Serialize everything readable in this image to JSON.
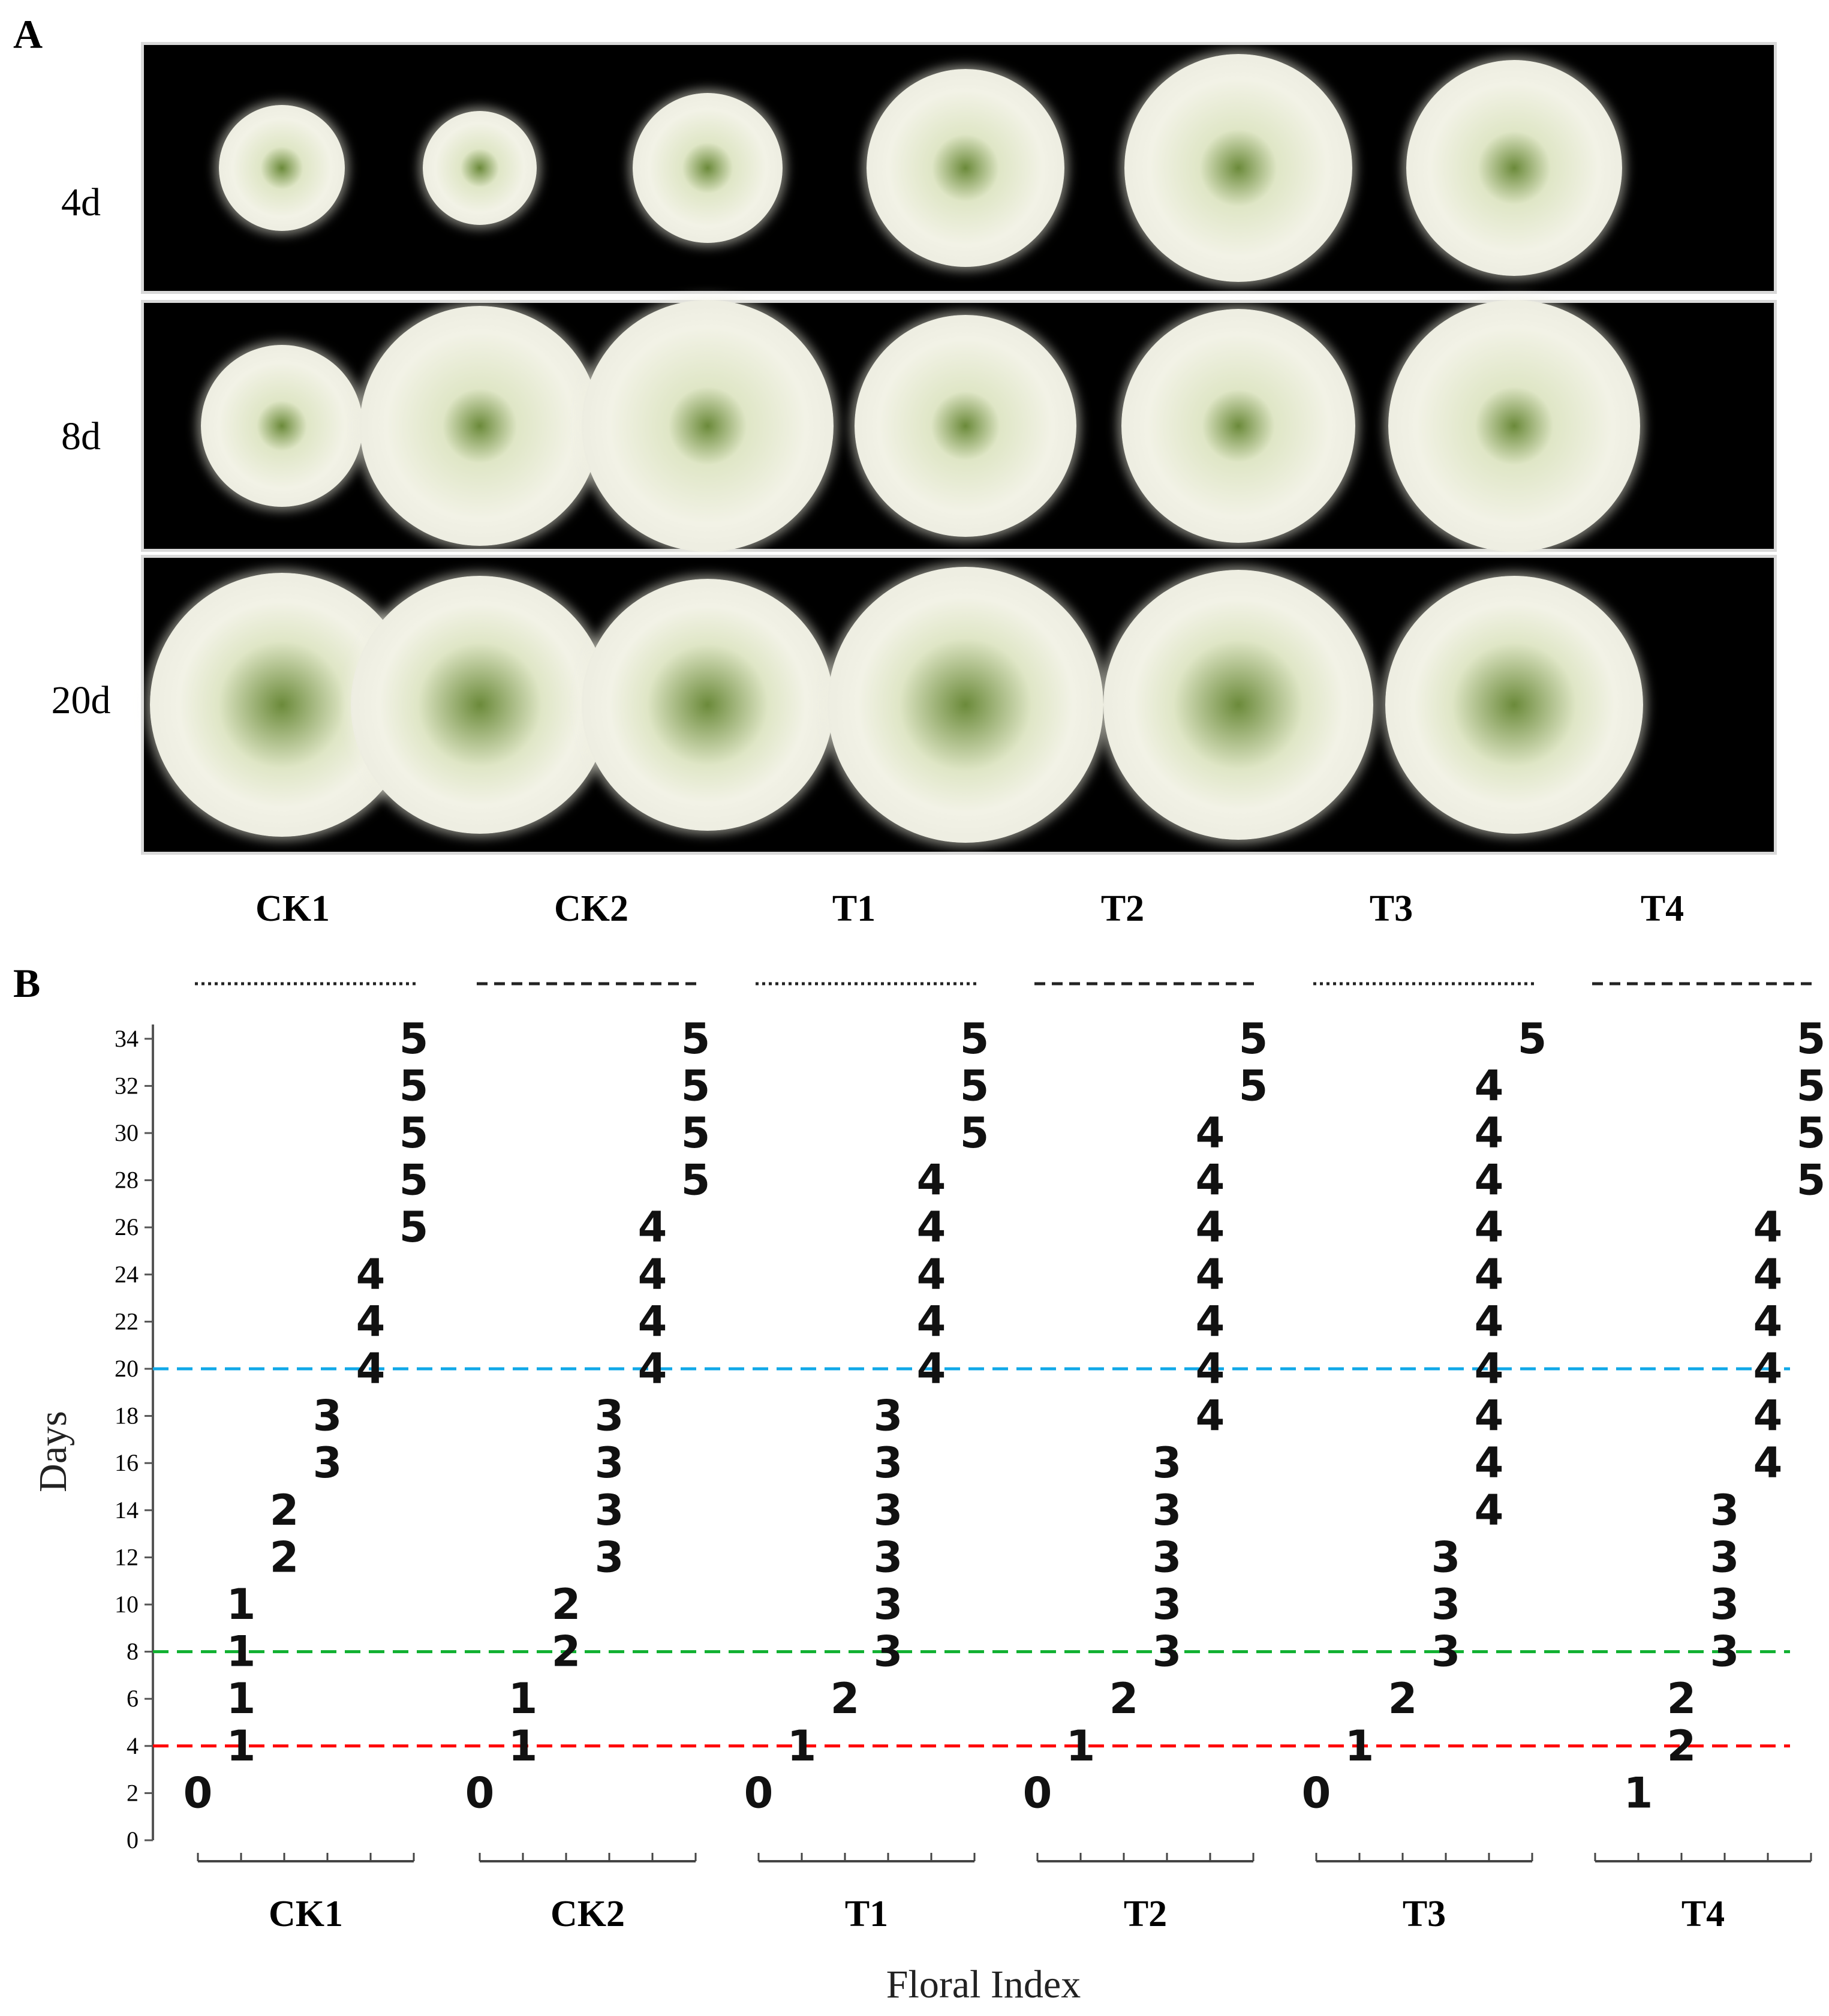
{
  "panel_a": {
    "letter": "A",
    "rows": [
      {
        "label": "4d"
      },
      {
        "label": "8d"
      },
      {
        "label": "20d"
      }
    ],
    "treatments": [
      "CK1",
      "CK2",
      "T1",
      "T2",
      "T3",
      "T4"
    ],
    "colors": {
      "background": "#000000",
      "petal": "#f2f2e6",
      "center": "#6b8a3a"
    }
  },
  "panel_b": {
    "letter": "B"
  },
  "chart_data": {
    "type": "scatter",
    "xlabel": "Floral Index",
    "ylabel": "Days",
    "ylim": [
      0,
      35
    ],
    "yticks": [
      0,
      2,
      4,
      6,
      8,
      10,
      12,
      14,
      16,
      18,
      20,
      22,
      24,
      26,
      28,
      30,
      32,
      34
    ],
    "grid": false,
    "reference_lines": [
      {
        "y": 4,
        "color": "#ff0000",
        "style": "dashed"
      },
      {
        "y": 8,
        "color": "#10b030",
        "style": "dashed"
      },
      {
        "y": 20,
        "color": "#10a8e8",
        "style": "dashed"
      }
    ],
    "groups": [
      {
        "name": "CK1",
        "line_style": "dotted",
        "points": [
          {
            "x": 0,
            "y": 2
          },
          {
            "x": 1,
            "y": 4
          },
          {
            "x": 1,
            "y": 6
          },
          {
            "x": 1,
            "y": 8
          },
          {
            "x": 1,
            "y": 10
          },
          {
            "x": 2,
            "y": 12
          },
          {
            "x": 2,
            "y": 14
          },
          {
            "x": 3,
            "y": 16
          },
          {
            "x": 3,
            "y": 18
          },
          {
            "x": 4,
            "y": 20
          },
          {
            "x": 4,
            "y": 22
          },
          {
            "x": 4,
            "y": 24
          },
          {
            "x": 5,
            "y": 26
          },
          {
            "x": 5,
            "y": 28
          },
          {
            "x": 5,
            "y": 30
          },
          {
            "x": 5,
            "y": 32
          },
          {
            "x": 5,
            "y": 34
          }
        ]
      },
      {
        "name": "CK2",
        "line_style": "dashed",
        "points": [
          {
            "x": 0,
            "y": 2
          },
          {
            "x": 1,
            "y": 4
          },
          {
            "x": 1,
            "y": 6
          },
          {
            "x": 2,
            "y": 8
          },
          {
            "x": 2,
            "y": 10
          },
          {
            "x": 3,
            "y": 12
          },
          {
            "x": 3,
            "y": 14
          },
          {
            "x": 3,
            "y": 16
          },
          {
            "x": 3,
            "y": 18
          },
          {
            "x": 4,
            "y": 20
          },
          {
            "x": 4,
            "y": 22
          },
          {
            "x": 4,
            "y": 24
          },
          {
            "x": 4,
            "y": 26
          },
          {
            "x": 5,
            "y": 28
          },
          {
            "x": 5,
            "y": 30
          },
          {
            "x": 5,
            "y": 32
          },
          {
            "x": 5,
            "y": 34
          }
        ]
      },
      {
        "name": "T1",
        "line_style": "dotted",
        "points": [
          {
            "x": 0,
            "y": 2
          },
          {
            "x": 1,
            "y": 4
          },
          {
            "x": 2,
            "y": 6
          },
          {
            "x": 3,
            "y": 8
          },
          {
            "x": 3,
            "y": 10
          },
          {
            "x": 3,
            "y": 12
          },
          {
            "x": 3,
            "y": 14
          },
          {
            "x": 3,
            "y": 16
          },
          {
            "x": 3,
            "y": 18
          },
          {
            "x": 4,
            "y": 20
          },
          {
            "x": 4,
            "y": 22
          },
          {
            "x": 4,
            "y": 24
          },
          {
            "x": 4,
            "y": 26
          },
          {
            "x": 4,
            "y": 28
          },
          {
            "x": 5,
            "y": 30
          },
          {
            "x": 5,
            "y": 32
          },
          {
            "x": 5,
            "y": 34
          }
        ]
      },
      {
        "name": "T2",
        "line_style": "dashed",
        "points": [
          {
            "x": 0,
            "y": 2
          },
          {
            "x": 1,
            "y": 4
          },
          {
            "x": 2,
            "y": 6
          },
          {
            "x": 3,
            "y": 8
          },
          {
            "x": 3,
            "y": 10
          },
          {
            "x": 3,
            "y": 12
          },
          {
            "x": 3,
            "y": 14
          },
          {
            "x": 3,
            "y": 16
          },
          {
            "x": 4,
            "y": 18
          },
          {
            "x": 4,
            "y": 20
          },
          {
            "x": 4,
            "y": 22
          },
          {
            "x": 4,
            "y": 24
          },
          {
            "x": 4,
            "y": 26
          },
          {
            "x": 4,
            "y": 28
          },
          {
            "x": 4,
            "y": 30
          },
          {
            "x": 5,
            "y": 32
          },
          {
            "x": 5,
            "y": 34
          }
        ]
      },
      {
        "name": "T3",
        "line_style": "dotted",
        "points": [
          {
            "x": 0,
            "y": 2
          },
          {
            "x": 1,
            "y": 4
          },
          {
            "x": 2,
            "y": 6
          },
          {
            "x": 3,
            "y": 8
          },
          {
            "x": 3,
            "y": 10
          },
          {
            "x": 3,
            "y": 12
          },
          {
            "x": 4,
            "y": 14
          },
          {
            "x": 4,
            "y": 16
          },
          {
            "x": 4,
            "y": 18
          },
          {
            "x": 4,
            "y": 20
          },
          {
            "x": 4,
            "y": 22
          },
          {
            "x": 4,
            "y": 24
          },
          {
            "x": 4,
            "y": 26
          },
          {
            "x": 4,
            "y": 28
          },
          {
            "x": 4,
            "y": 30
          },
          {
            "x": 4,
            "y": 32
          },
          {
            "x": 5,
            "y": 34
          }
        ]
      },
      {
        "name": "T4",
        "line_style": "dashed",
        "points": [
          {
            "x": 1,
            "y": 2
          },
          {
            "x": 2,
            "y": 4
          },
          {
            "x": 2,
            "y": 6
          },
          {
            "x": 3,
            "y": 8
          },
          {
            "x": 3,
            "y": 10
          },
          {
            "x": 3,
            "y": 12
          },
          {
            "x": 3,
            "y": 14
          },
          {
            "x": 4,
            "y": 16
          },
          {
            "x": 4,
            "y": 18
          },
          {
            "x": 4,
            "y": 20
          },
          {
            "x": 4,
            "y": 22
          },
          {
            "x": 4,
            "y": 24
          },
          {
            "x": 4,
            "y": 26
          },
          {
            "x": 5,
            "y": 28
          },
          {
            "x": 5,
            "y": 30
          },
          {
            "x": 5,
            "y": 32
          },
          {
            "x": 5,
            "y": 34
          }
        ]
      }
    ]
  }
}
